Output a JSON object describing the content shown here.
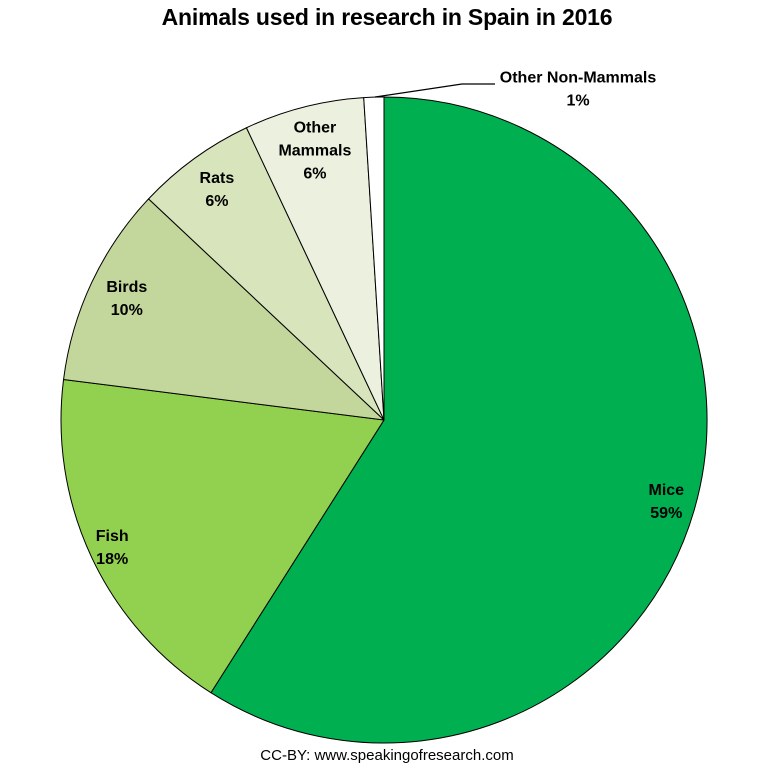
{
  "title": "Animals used in research in Spain in 2016",
  "footer": "CC-BY: www.speakingofresearch.com",
  "chart_data": {
    "type": "pie",
    "title": "Animals used in research in Spain in 2016",
    "start_angle_deg": 0,
    "direction": "clockwise",
    "legend": "none",
    "background": "#FFFFFF",
    "outline_color": "#000000",
    "label_color": "#000000",
    "slices": [
      {
        "label": "Mice",
        "value": 59,
        "percent_text": "59%",
        "color": "#00B050",
        "label_lines": [
          "Mice",
          "59%"
        ],
        "label_placement": "inside",
        "label_r": 0.91
      },
      {
        "label": "Fish",
        "value": 18,
        "percent_text": "18%",
        "color": "#92D050",
        "label_lines": [
          "Fish",
          "18%"
        ],
        "label_placement": "inside",
        "label_r": 0.93
      },
      {
        "label": "Birds",
        "value": 10,
        "percent_text": "10%",
        "color": "#C3D69B",
        "label_lines": [
          "Birds",
          "10%"
        ],
        "label_placement": "inside",
        "label_r": 0.88
      },
      {
        "label": "Rats",
        "value": 6,
        "percent_text": "6%",
        "color": "#D7E4BC",
        "label_lines": [
          "Rats",
          "6%"
        ],
        "label_placement": "inside",
        "label_r": 0.88
      },
      {
        "label": "Other Mammals",
        "value": 6,
        "percent_text": "6%",
        "color": "#EBF1DE",
        "label_lines": [
          "Other",
          "Mammals",
          "6%"
        ],
        "label_placement": "inside",
        "label_r": 0.86
      },
      {
        "label": "Other Non-Mammals",
        "value": 1,
        "percent_text": "1%",
        "color": "#FFFFFF",
        "label_lines": [
          "Other Non-Mammals",
          "1%"
        ],
        "label_placement": "outside",
        "label_pos": [
          578,
          78
        ],
        "leader_points": [
          [
            375,
            97
          ],
          [
            462,
            84
          ],
          [
            495,
            84
          ]
        ]
      }
    ]
  }
}
